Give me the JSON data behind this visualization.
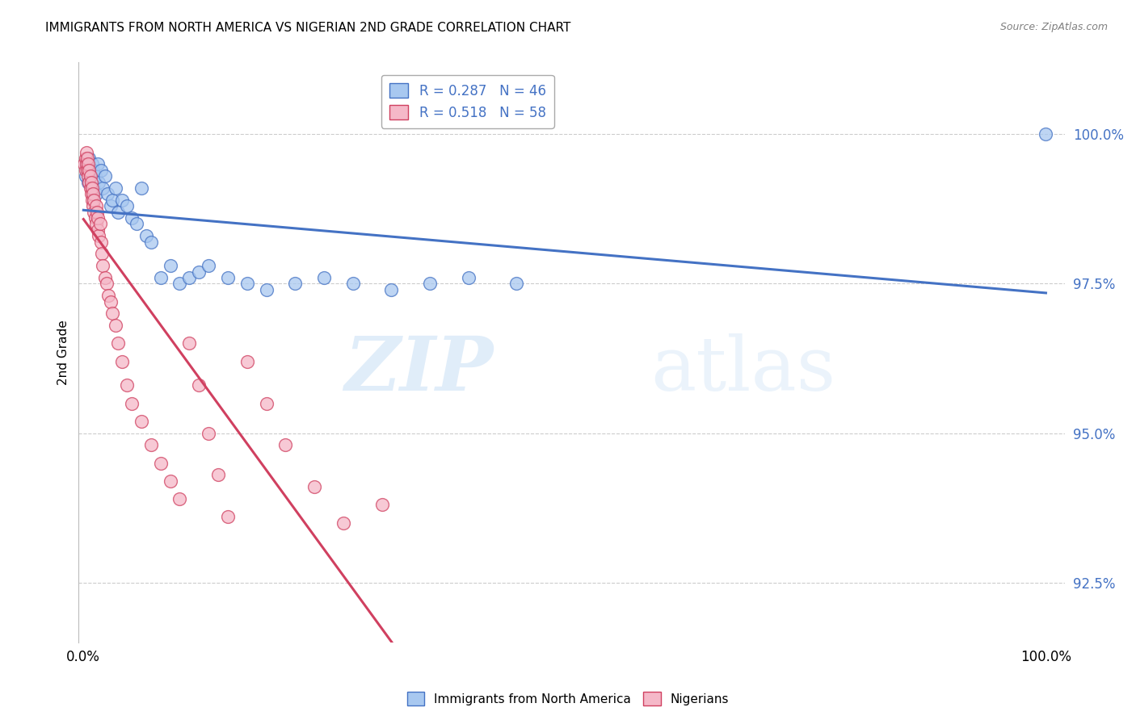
{
  "title": "IMMIGRANTS FROM NORTH AMERICA VS NIGERIAN 2ND GRADE CORRELATION CHART",
  "source": "Source: ZipAtlas.com",
  "ylabel": "2nd Grade",
  "y_ticks": [
    92.5,
    95.0,
    97.5,
    100.0
  ],
  "y_tick_labels": [
    "92.5%",
    "95.0%",
    "97.5%",
    "100.0%"
  ],
  "xlim": [
    0.0,
    1.0
  ],
  "ylim": [
    91.5,
    101.2
  ],
  "blue_color": "#A8C8F0",
  "pink_color": "#F5B8C8",
  "blue_line_color": "#4472C4",
  "pink_line_color": "#D04060",
  "legend_R_blue": "R = 0.287",
  "legend_N_blue": "N = 46",
  "legend_R_pink": "R = 0.518",
  "legend_N_pink": "N = 58",
  "blue_scatter_x": [
    0.002,
    0.003,
    0.004,
    0.005,
    0.006,
    0.007,
    0.008,
    0.009,
    0.01,
    0.011,
    0.012,
    0.013,
    0.015,
    0.016,
    0.018,
    0.02,
    0.022,
    0.025,
    0.028,
    0.03,
    0.033,
    0.036,
    0.04,
    0.045,
    0.05,
    0.055,
    0.06,
    0.065,
    0.07,
    0.08,
    0.09,
    0.1,
    0.11,
    0.12,
    0.13,
    0.15,
    0.17,
    0.19,
    0.22,
    0.25,
    0.28,
    0.32,
    0.36,
    0.4,
    0.45,
    1.0
  ],
  "blue_scatter_y": [
    99.3,
    99.5,
    99.4,
    99.2,
    99.6,
    99.4,
    99.3,
    99.5,
    99.4,
    99.1,
    99.3,
    99.0,
    99.5,
    99.2,
    99.4,
    99.1,
    99.3,
    99.0,
    98.8,
    98.9,
    99.1,
    98.7,
    98.9,
    98.8,
    98.6,
    98.5,
    99.1,
    98.3,
    98.2,
    97.6,
    97.8,
    97.5,
    97.6,
    97.7,
    97.8,
    97.6,
    97.5,
    97.4,
    97.5,
    97.6,
    97.5,
    97.4,
    97.5,
    97.6,
    97.5,
    100.0
  ],
  "pink_scatter_x": [
    0.001,
    0.002,
    0.002,
    0.003,
    0.003,
    0.004,
    0.004,
    0.005,
    0.005,
    0.006,
    0.006,
    0.007,
    0.007,
    0.008,
    0.008,
    0.009,
    0.009,
    0.01,
    0.01,
    0.011,
    0.011,
    0.012,
    0.013,
    0.013,
    0.014,
    0.015,
    0.015,
    0.016,
    0.017,
    0.018,
    0.019,
    0.02,
    0.022,
    0.024,
    0.026,
    0.028,
    0.03,
    0.033,
    0.036,
    0.04,
    0.045,
    0.05,
    0.06,
    0.07,
    0.08,
    0.09,
    0.1,
    0.11,
    0.12,
    0.13,
    0.14,
    0.15,
    0.17,
    0.19,
    0.21,
    0.24,
    0.27,
    0.31
  ],
  "pink_scatter_y": [
    99.5,
    99.6,
    99.4,
    99.5,
    99.7,
    99.4,
    99.6,
    99.3,
    99.5,
    99.2,
    99.4,
    99.3,
    99.1,
    99.0,
    99.2,
    98.9,
    99.1,
    98.8,
    99.0,
    98.7,
    98.9,
    98.6,
    98.8,
    98.5,
    98.7,
    98.4,
    98.6,
    98.3,
    98.5,
    98.2,
    98.0,
    97.8,
    97.6,
    97.5,
    97.3,
    97.2,
    97.0,
    96.8,
    96.5,
    96.2,
    95.8,
    95.5,
    95.2,
    94.8,
    94.5,
    94.2,
    93.9,
    96.5,
    95.8,
    95.0,
    94.3,
    93.6,
    96.2,
    95.5,
    94.8,
    94.1,
    93.5,
    93.8
  ],
  "watermark_zip": "ZIP",
  "watermark_atlas": "atlas",
  "background_color": "#FFFFFF",
  "grid_color": "#CCCCCC"
}
